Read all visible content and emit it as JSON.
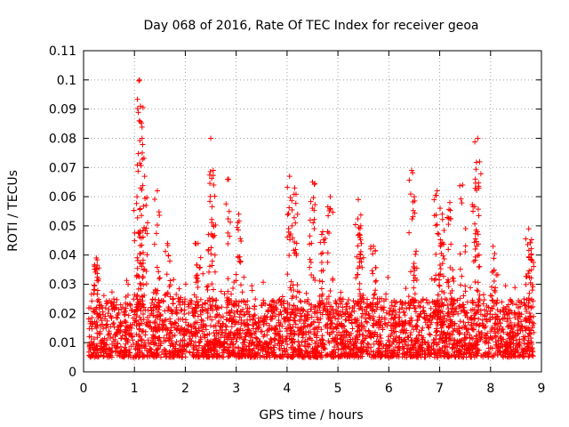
{
  "chart_data": {
    "type": "scatter",
    "title": "Day 068 of 2016, Rate Of TEC Index for receiver geoa",
    "xlabel": "GPS time / hours",
    "ylabel": "ROTI / TECUs",
    "xlim": [
      0,
      9
    ],
    "ylim": [
      0,
      0.11
    ],
    "xticks": [
      0,
      1,
      2,
      3,
      4,
      5,
      6,
      7,
      8,
      9
    ],
    "xtick_labels": [
      "0",
      "1",
      "2",
      "3",
      "4",
      "5",
      "6",
      "7",
      "8",
      "9"
    ],
    "yticks": [
      0,
      0.01,
      0.02,
      0.03,
      0.04,
      0.05,
      0.06,
      0.07,
      0.08,
      0.09,
      0.1,
      0.11
    ],
    "ytick_labels": [
      "0",
      "0.01",
      "0.02",
      "0.03",
      "0.04",
      "0.05",
      "0.06",
      "0.07",
      "0.08",
      "0.09",
      "0.1",
      "0.11"
    ],
    "grid": true,
    "marker": "+",
    "marker_color": "#ff0000",
    "x_range_data": [
      0.1,
      8.85
    ],
    "baseline_band": [
      0.005,
      0.025
    ],
    "spikes": [
      {
        "x": 0.25,
        "y": 0.039
      },
      {
        "x": 1.05,
        "y": 0.06
      },
      {
        "x": 1.1,
        "y": 0.1
      },
      {
        "x": 1.12,
        "y": 0.091
      },
      {
        "x": 1.15,
        "y": 0.08
      },
      {
        "x": 1.2,
        "y": 0.067
      },
      {
        "x": 1.45,
        "y": 0.062
      },
      {
        "x": 1.65,
        "y": 0.044
      },
      {
        "x": 2.25,
        "y": 0.044
      },
      {
        "x": 2.5,
        "y": 0.08
      },
      {
        "x": 2.55,
        "y": 0.069
      },
      {
        "x": 2.85,
        "y": 0.066
      },
      {
        "x": 3.05,
        "y": 0.054
      },
      {
        "x": 4.05,
        "y": 0.067
      },
      {
        "x": 4.15,
        "y": 0.063
      },
      {
        "x": 4.5,
        "y": 0.065
      },
      {
        "x": 4.7,
        "y": 0.048
      },
      {
        "x": 4.85,
        "y": 0.06
      },
      {
        "x": 5.4,
        "y": 0.059
      },
      {
        "x": 5.45,
        "y": 0.05
      },
      {
        "x": 5.7,
        "y": 0.043
      },
      {
        "x": 6.45,
        "y": 0.069
      },
      {
        "x": 6.5,
        "y": 0.06
      },
      {
        "x": 6.95,
        "y": 0.062
      },
      {
        "x": 7.05,
        "y": 0.054
      },
      {
        "x": 7.2,
        "y": 0.058
      },
      {
        "x": 7.45,
        "y": 0.064
      },
      {
        "x": 7.7,
        "y": 0.066
      },
      {
        "x": 7.75,
        "y": 0.08
      },
      {
        "x": 8.05,
        "y": 0.043
      },
      {
        "x": 8.75,
        "y": 0.049
      },
      {
        "x": 8.8,
        "y": 0.04
      }
    ]
  }
}
